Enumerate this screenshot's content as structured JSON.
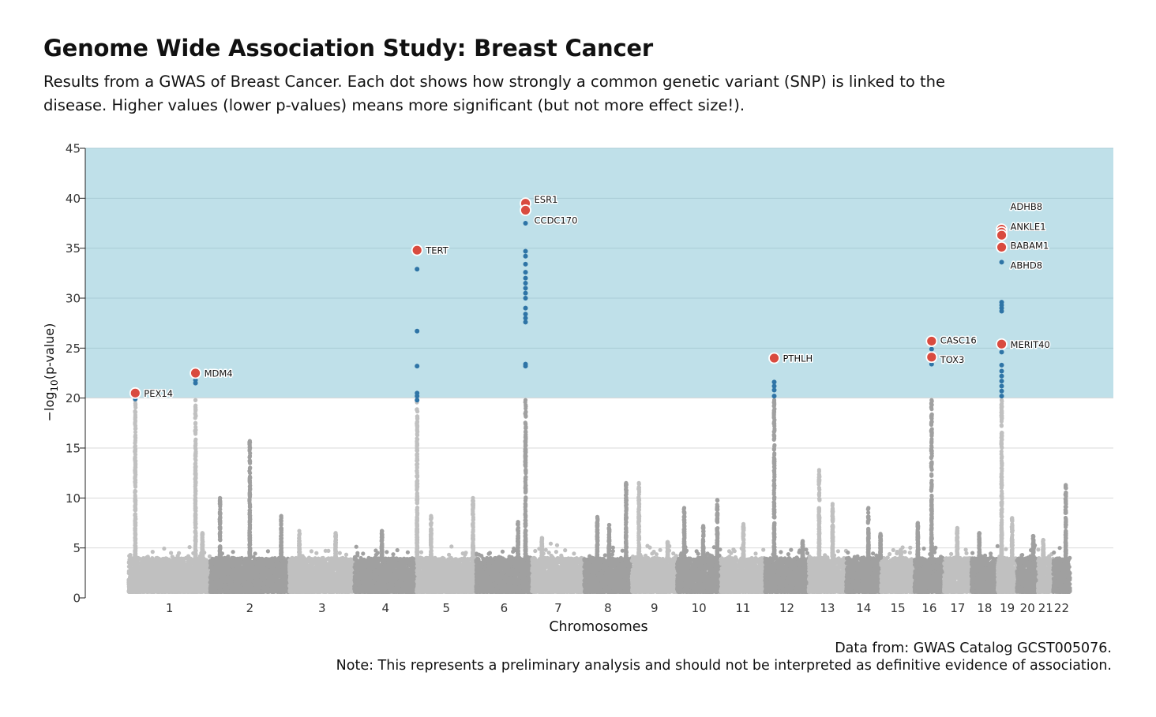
{
  "title": "Genome Wide Association Study: Breast Cancer",
  "subtitle": "Results from a GWAS of Breast Cancer. Each dot shows how strongly a common genetic variant (SNP) is linked to the disease. Higher values (lower p-values) means more significant (but not more effect size!).",
  "caption": {
    "source": "Data from: GWAS Catalog GCST005076.",
    "note": "Note: This represents a preliminary analysis and should not be interpreted as definitive evidence of association."
  },
  "colors": {
    "highlight_band": "#bfe0e9",
    "significant": "#2e74a6",
    "top_hit": "#d94b3f",
    "chrom_light": "#c0c0c0",
    "chrom_dark": "#a0a0a0",
    "grid": "#d9d9d9"
  },
  "chart_data": {
    "type": "scatter",
    "xlabel": "Chromosomes",
    "ylabel_base": "−log",
    "ylabel_sub": "10",
    "ylabel_tail": "(p-value)",
    "ylim": [
      0,
      45
    ],
    "yticks": [
      0,
      5,
      10,
      15,
      20,
      25,
      30,
      35,
      40,
      45
    ],
    "highlight_threshold": 20,
    "chromosomes": [
      {
        "label": "1",
        "start": 0.0,
        "end": 248.9
      },
      {
        "label": "2",
        "start": 248.9,
        "end": 491.1
      },
      {
        "label": "3",
        "start": 491.1,
        "end": 689.4
      },
      {
        "label": "4",
        "start": 689.4,
        "end": 879.6
      },
      {
        "label": "5",
        "start": 879.6,
        "end": 1061.1
      },
      {
        "label": "6",
        "start": 1061.1,
        "end": 1232.1
      },
      {
        "label": "7",
        "start": 1232.1,
        "end": 1391.4
      },
      {
        "label": "8",
        "start": 1391.4,
        "end": 1536.5
      },
      {
        "label": "9",
        "start": 1536.5,
        "end": 1674.9
      },
      {
        "label": "10",
        "start": 1674.9,
        "end": 1808.7
      },
      {
        "label": "11",
        "start": 1808.7,
        "end": 1943.8
      },
      {
        "label": "12",
        "start": 1943.8,
        "end": 2077.1
      },
      {
        "label": "13",
        "start": 2077.1,
        "end": 2191.5
      },
      {
        "label": "14",
        "start": 2191.5,
        "end": 2298.5
      },
      {
        "label": "15",
        "start": 2298.5,
        "end": 2400.5
      },
      {
        "label": "16",
        "start": 2400.5,
        "end": 2490.8
      },
      {
        "label": "17",
        "start": 2490.8,
        "end": 2574.1
      },
      {
        "label": "18",
        "start": 2574.1,
        "end": 2654.5
      },
      {
        "label": "19",
        "start": 2654.5,
        "end": 2713.1
      },
      {
        "label": "20",
        "start": 2713.1,
        "end": 2777.6
      },
      {
        "label": "21",
        "start": 2777.6,
        "end": 2824.3
      },
      {
        "label": "22",
        "start": 2824.3,
        "end": 2875.1
      }
    ],
    "peaks": [
      {
        "chrom": "1",
        "pos": 20,
        "max": 20.5
      },
      {
        "chrom": "1",
        "pos": 204,
        "max": 22.5
      },
      {
        "chrom": "1",
        "pos": 225,
        "max": 6.5
      },
      {
        "chrom": "2",
        "pos": 121,
        "max": 15.7
      },
      {
        "chrom": "2",
        "pos": 30,
        "max": 10.0
      },
      {
        "chrom": "2",
        "pos": 217,
        "max": 8.2
      },
      {
        "chrom": "3",
        "pos": 30,
        "max": 6.7
      },
      {
        "chrom": "3",
        "pos": 141,
        "max": 6.5
      },
      {
        "chrom": "4",
        "pos": 84,
        "max": 6.7
      },
      {
        "chrom": "5",
        "pos": 1.3,
        "max": 34.8
      },
      {
        "chrom": "5",
        "pos": 44,
        "max": 8.2
      },
      {
        "chrom": "5",
        "pos": 172,
        "max": 10.0
      },
      {
        "chrom": "6",
        "pos": 151,
        "max": 39.5
      },
      {
        "chrom": "6",
        "pos": 128,
        "max": 7.6
      },
      {
        "chrom": "7",
        "pos": 30,
        "max": 6.0
      },
      {
        "chrom": "8",
        "pos": 40,
        "max": 8.1
      },
      {
        "chrom": "8",
        "pos": 128,
        "max": 11.5
      },
      {
        "chrom": "8",
        "pos": 76,
        "max": 7.3
      },
      {
        "chrom": "9",
        "pos": 22,
        "max": 11.5
      },
      {
        "chrom": "9",
        "pos": 110,
        "max": 5.6
      },
      {
        "chrom": "10",
        "pos": 22,
        "max": 9.0
      },
      {
        "chrom": "10",
        "pos": 123,
        "max": 9.8
      },
      {
        "chrom": "10",
        "pos": 80,
        "max": 7.2
      },
      {
        "chrom": "11",
        "pos": 69,
        "max": 7.4
      },
      {
        "chrom": "12",
        "pos": 28,
        "max": 24.0
      },
      {
        "chrom": "12",
        "pos": 115,
        "max": 5.7
      },
      {
        "chrom": "13",
        "pos": 32,
        "max": 12.8
      },
      {
        "chrom": "13",
        "pos": 73,
        "max": 9.4
      },
      {
        "chrom": "14",
        "pos": 68,
        "max": 9.0
      },
      {
        "chrom": "14",
        "pos": 105,
        "max": 6.4
      },
      {
        "chrom": "15",
        "pos": 60,
        "max": 4.8
      },
      {
        "chrom": "16",
        "pos": 52,
        "max": 25.7
      },
      {
        "chrom": "16",
        "pos": 10,
        "max": 7.5
      },
      {
        "chrom": "17",
        "pos": 40,
        "max": 7.0
      },
      {
        "chrom": "18",
        "pos": 24,
        "max": 6.5
      },
      {
        "chrom": "19",
        "pos": 12,
        "max": 36.8
      },
      {
        "chrom": "19",
        "pos": 44,
        "max": 8.0
      },
      {
        "chrom": "20",
        "pos": 50,
        "max": 6.2
      },
      {
        "chrom": "21",
        "pos": 16,
        "max": 5.8
      },
      {
        "chrom": "22",
        "pos": 38,
        "max": 11.3
      }
    ],
    "significant_snps": [
      {
        "chrom": "1",
        "pos": 20,
        "ys": [
          19.9
        ]
      },
      {
        "chrom": "1",
        "pos": 204,
        "ys": [
          21.5,
          21.8,
          22.2
        ]
      },
      {
        "chrom": "5",
        "pos": 1.3,
        "ys": [
          19.8,
          20.2,
          20.5,
          23.2,
          26.7,
          32.9
        ]
      },
      {
        "chrom": "6",
        "pos": 151,
        "ys": [
          23.2,
          23.4,
          27.6,
          28.0,
          28.4,
          29.0,
          30.0,
          30.5,
          31.0,
          31.5,
          32.0,
          32.6,
          33.4,
          34.2,
          34.7,
          37.5
        ]
      },
      {
        "chrom": "12",
        "pos": 28,
        "ys": [
          20.2,
          20.8,
          21.2,
          21.6
        ]
      },
      {
        "chrom": "16",
        "pos": 52,
        "ys": [
          23.4,
          24.9
        ]
      },
      {
        "chrom": "19",
        "pos": 12,
        "ys": [
          20.2,
          20.7,
          21.2,
          21.7,
          22.2,
          22.7,
          23.3,
          24.6,
          28.7,
          29.0,
          29.3,
          29.6,
          33.6
        ]
      }
    ],
    "top_hits": [
      {
        "gene": "PEX14",
        "chrom": "1",
        "pos": 20,
        "y": 20.5,
        "label_y": 20.5
      },
      {
        "gene": "MDM4",
        "chrom": "1",
        "pos": 204,
        "y": 22.5,
        "label_y": 22.5
      },
      {
        "gene": "TERT",
        "chrom": "5",
        "pos": 1.3,
        "y": 34.8,
        "label_y": 34.8
      },
      {
        "gene": "ESR1",
        "chrom": "6",
        "pos": 151,
        "y": 39.5,
        "label_y": 39.9
      },
      {
        "gene": "CCDC170",
        "chrom": "6",
        "pos": 151,
        "y": 38.8,
        "label_y": 37.8
      },
      {
        "gene": "PTHLH",
        "chrom": "12",
        "pos": 28,
        "y": 24.0,
        "label_y": 24.0
      },
      {
        "gene": "CASC16",
        "chrom": "16",
        "pos": 52,
        "y": 25.7,
        "label_y": 25.8
      },
      {
        "gene": "TOX3",
        "chrom": "16",
        "pos": 52,
        "y": 24.1,
        "label_y": 23.9
      },
      {
        "gene": "ANKLE1",
        "chrom": "19",
        "pos": 12,
        "y": 36.9,
        "label_y": 37.2
      },
      {
        "gene": "ADHB8",
        "chrom": "19",
        "pos": 12,
        "y": 36.6,
        "label_y": 39.2
      },
      {
        "gene": "BABAM1",
        "chrom": "19",
        "pos": 12,
        "y": 35.1,
        "label_y": 35.3
      },
      {
        "gene": "ABHD8",
        "chrom": "19",
        "pos": 12,
        "y": 36.3,
        "label_y": 33.3
      },
      {
        "gene": "MERIT40",
        "chrom": "19",
        "pos": 12,
        "y": 25.4,
        "label_y": 25.4
      }
    ]
  }
}
